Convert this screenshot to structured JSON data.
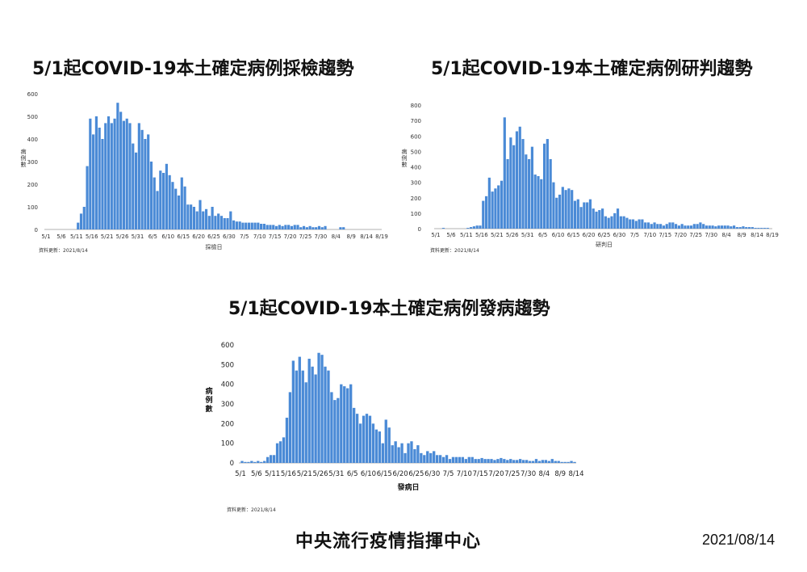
{
  "footer": {
    "org": "中央流行疫情指揮中心",
    "date": "2021/08/14"
  },
  "colors": {
    "bar": "#4a8ad6",
    "axis": "#999999"
  },
  "chart_data": [
    {
      "type": "bar",
      "title": "5/1起COVID-19本土確定病例採檢趨勢",
      "xlabel": "採檢日",
      "ylabel": "病例數",
      "ylim": [
        0,
        600
      ],
      "yticks": [
        0,
        100,
        200,
        300,
        400,
        500,
        600
      ],
      "x_tick_labels": [
        "5/1",
        "5/6",
        "5/11",
        "5/16",
        "5/21",
        "5/26",
        "5/31",
        "6/5",
        "6/10",
        "6/15",
        "6/20",
        "6/25",
        "6/30",
        "7/5",
        "7/10",
        "7/15",
        "7/20",
        "7/25",
        "7/30",
        "8/4",
        "8/9",
        "8/14",
        "8/19"
      ],
      "start_date": "5/1",
      "note": "資料更新：2021/8/14",
      "values": [
        0,
        0,
        0,
        0,
        0,
        0,
        0,
        0,
        0,
        0,
        30,
        70,
        100,
        280,
        490,
        420,
        500,
        450,
        400,
        470,
        500,
        470,
        490,
        560,
        520,
        480,
        490,
        470,
        380,
        340,
        470,
        440,
        400,
        420,
        300,
        230,
        170,
        260,
        250,
        290,
        240,
        210,
        180,
        150,
        230,
        190,
        110,
        110,
        100,
        80,
        130,
        80,
        90,
        60,
        100,
        60,
        70,
        60,
        50,
        50,
        80,
        40,
        35,
        35,
        30,
        30,
        30,
        30,
        30,
        30,
        25,
        25,
        20,
        20,
        20,
        15,
        20,
        15,
        20,
        20,
        15,
        20,
        20,
        10,
        15,
        10,
        15,
        10,
        10,
        15,
        10,
        15,
        0,
        0,
        0,
        0,
        10,
        10,
        0,
        0,
        0,
        0,
        0,
        0,
        0,
        0,
        0,
        0,
        0,
        0,
        0,
        0,
        0
      ]
    },
    {
      "type": "bar",
      "title": "5/1起COVID-19本土確定病例研判趨勢",
      "xlabel": "研判日",
      "ylabel": "病例數",
      "ylim": [
        0,
        800
      ],
      "yticks": [
        0,
        100,
        200,
        300,
        400,
        500,
        600,
        700,
        800
      ],
      "x_tick_labels": [
        "5/1",
        "5/6",
        "5/11",
        "5/16",
        "5/21",
        "5/26",
        "5/31",
        "6/5",
        "6/10",
        "6/15",
        "6/20",
        "6/25",
        "6/30",
        "7/5",
        "7/10",
        "7/15",
        "7/20",
        "7/25",
        "7/30",
        "8/4",
        "8/9",
        "8/14",
        "8/19"
      ],
      "start_date": "5/1",
      "note": "資料更新：2021/8/14",
      "values": [
        0,
        0,
        5,
        0,
        0,
        0,
        0,
        0,
        0,
        0,
        5,
        10,
        15,
        20,
        20,
        180,
        210,
        330,
        240,
        260,
        280,
        310,
        720,
        450,
        590,
        540,
        630,
        660,
        580,
        480,
        450,
        530,
        350,
        340,
        320,
        550,
        580,
        450,
        300,
        200,
        220,
        270,
        250,
        260,
        250,
        180,
        190,
        140,
        170,
        170,
        190,
        130,
        110,
        120,
        130,
        80,
        70,
        80,
        100,
        130,
        80,
        80,
        70,
        60,
        60,
        50,
        60,
        60,
        40,
        40,
        30,
        40,
        30,
        30,
        20,
        30,
        40,
        40,
        30,
        20,
        30,
        20,
        20,
        20,
        30,
        30,
        40,
        30,
        20,
        20,
        20,
        15,
        20,
        20,
        20,
        20,
        15,
        20,
        10,
        10,
        15,
        10,
        10,
        10,
        5,
        5,
        5,
        5,
        5,
        0,
        0,
        0,
        0
      ]
    },
    {
      "type": "bar",
      "title": "5/1起COVID-19本土確定病例發病趨勢",
      "xlabel": "發病日",
      "ylabel": "病例數",
      "ylim": [
        0,
        600
      ],
      "yticks": [
        0,
        100,
        200,
        300,
        400,
        500,
        600
      ],
      "x_tick_labels": [
        "5/1",
        "5/6",
        "5/11",
        "5/16",
        "5/21",
        "5/26",
        "5/31",
        "6/5",
        "6/10",
        "6/15",
        "6/20",
        "6/25",
        "6/30",
        "7/5",
        "7/10",
        "7/15",
        "7/20",
        "7/25",
        "7/30",
        "8/4",
        "8/9",
        "8/14"
      ],
      "start_date": "5/1",
      "note": "資料更新：2021/8/14",
      "values": [
        10,
        5,
        5,
        10,
        5,
        10,
        5,
        10,
        30,
        40,
        40,
        100,
        110,
        130,
        230,
        360,
        520,
        470,
        540,
        470,
        410,
        530,
        490,
        450,
        560,
        550,
        490,
        470,
        360,
        320,
        330,
        400,
        390,
        380,
        400,
        280,
        250,
        200,
        240,
        250,
        240,
        200,
        170,
        160,
        100,
        220,
        180,
        90,
        110,
        80,
        100,
        50,
        100,
        110,
        70,
        90,
        50,
        40,
        60,
        50,
        60,
        40,
        40,
        30,
        40,
        20,
        30,
        30,
        30,
        30,
        20,
        30,
        30,
        20,
        20,
        25,
        20,
        20,
        20,
        15,
        20,
        25,
        20,
        15,
        20,
        15,
        15,
        20,
        15,
        15,
        10,
        10,
        20,
        10,
        15,
        15,
        10,
        20,
        10,
        10,
        5,
        5,
        5,
        10,
        5
      ]
    }
  ]
}
